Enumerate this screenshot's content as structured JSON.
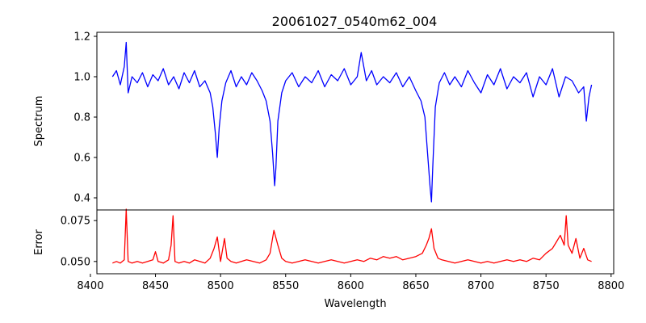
{
  "chart_data": [
    {
      "type": "line",
      "title": "20061027_0540m62_004",
      "xlabel": "",
      "ylabel": "Spectrum",
      "xlim": [
        8405,
        8802
      ],
      "ylim": [
        0.34,
        1.22
      ],
      "yticks": [
        "0.4",
        "0.6",
        "0.8",
        "1.0",
        "1.2"
      ],
      "grid": false,
      "color": "#0000ff",
      "series": [
        {
          "x": [
            8417,
            8420,
            8423,
            8426,
            8427.5,
            8429,
            8432,
            8436,
            8440,
            8444,
            8448,
            8452,
            8456,
            8460,
            8464,
            8468,
            8472,
            8476,
            8480,
            8484,
            8488,
            8492,
            8494,
            8496,
            8497.5,
            8499,
            8501,
            8504,
            8508,
            8512,
            8516,
            8520,
            8524,
            8528,
            8532,
            8535,
            8538,
            8540,
            8541.5,
            8542.5,
            8544,
            8547,
            8550,
            8555,
            8560,
            8565,
            8570,
            8575,
            8580,
            8585,
            8590,
            8595,
            8600,
            8605,
            8608,
            8612,
            8616,
            8620,
            8625,
            8630,
            8635,
            8640,
            8645,
            8650,
            8654,
            8657,
            8659,
            8661,
            8662,
            8663,
            8665,
            8668,
            8672,
            8676,
            8680,
            8685,
            8690,
            8695,
            8700,
            8705,
            8710,
            8715,
            8720,
            8725,
            8730,
            8735,
            8740,
            8745,
            8750,
            8755,
            8760,
            8765,
            8770,
            8775,
            8779,
            8781,
            8783,
            8785
          ],
          "y": [
            1.0,
            1.03,
            0.96,
            1.05,
            1.17,
            0.92,
            1.0,
            0.97,
            1.02,
            0.95,
            1.01,
            0.98,
            1.04,
            0.96,
            1.0,
            0.94,
            1.02,
            0.97,
            1.03,
            0.95,
            0.98,
            0.92,
            0.85,
            0.72,
            0.6,
            0.75,
            0.88,
            0.97,
            1.03,
            0.95,
            1.0,
            0.96,
            1.02,
            0.98,
            0.93,
            0.88,
            0.78,
            0.62,
            0.46,
            0.55,
            0.78,
            0.92,
            0.98,
            1.02,
            0.95,
            1.0,
            0.97,
            1.03,
            0.95,
            1.01,
            0.98,
            1.04,
            0.96,
            1.0,
            1.12,
            0.98,
            1.03,
            0.96,
            1.0,
            0.97,
            1.02,
            0.95,
            1.0,
            0.93,
            0.88,
            0.8,
            0.62,
            0.45,
            0.38,
            0.55,
            0.85,
            0.97,
            1.02,
            0.96,
            1.0,
            0.95,
            1.03,
            0.97,
            0.92,
            1.01,
            0.96,
            1.04,
            0.94,
            1.0,
            0.97,
            1.02,
            0.9,
            1.0,
            0.96,
            1.04,
            0.9,
            1.0,
            0.98,
            0.92,
            0.95,
            0.78,
            0.9,
            0.96
          ]
        }
      ]
    },
    {
      "type": "line",
      "title": "",
      "xlabel": "Wavelength",
      "ylabel": "Error",
      "xlim": [
        8405,
        8802
      ],
      "ylim": [
        0.0425,
        0.0815
      ],
      "xticks": [
        "8400",
        "8450",
        "8500",
        "8550",
        "8600",
        "8650",
        "8700",
        "8750",
        "8800"
      ],
      "yticks": [
        "0.050",
        "0.075"
      ],
      "grid": false,
      "color": "#ff0000",
      "series": [
        {
          "x": [
            8417,
            8420,
            8423,
            8426,
            8427.5,
            8429,
            8432,
            8436,
            8440,
            8444,
            8448,
            8450,
            8452,
            8456,
            8460,
            8462,
            8463.5,
            8465,
            8468,
            8472,
            8476,
            8480,
            8484,
            8488,
            8492,
            8495,
            8497.5,
            8500,
            8503,
            8505,
            8508,
            8512,
            8516,
            8520,
            8525,
            8530,
            8535,
            8538,
            8541,
            8544,
            8547,
            8550,
            8555,
            8560,
            8565,
            8570,
            8575,
            8580,
            8585,
            8590,
            8595,
            8600,
            8605,
            8610,
            8615,
            8620,
            8625,
            8630,
            8635,
            8640,
            8645,
            8650,
            8655,
            8658,
            8660,
            8662,
            8664,
            8667,
            8670,
            8675,
            8680,
            8685,
            8690,
            8695,
            8700,
            8705,
            8710,
            8715,
            8720,
            8725,
            8730,
            8735,
            8740,
            8745,
            8750,
            8755,
            8758,
            8761,
            8764,
            8765.5,
            8767,
            8770,
            8773,
            8776,
            8779,
            8782,
            8785
          ],
          "y": [
            0.049,
            0.05,
            0.049,
            0.051,
            0.082,
            0.05,
            0.049,
            0.05,
            0.049,
            0.05,
            0.051,
            0.056,
            0.05,
            0.049,
            0.051,
            0.06,
            0.078,
            0.05,
            0.049,
            0.05,
            0.049,
            0.051,
            0.05,
            0.049,
            0.052,
            0.058,
            0.065,
            0.05,
            0.064,
            0.052,
            0.05,
            0.049,
            0.05,
            0.051,
            0.05,
            0.049,
            0.051,
            0.055,
            0.069,
            0.06,
            0.052,
            0.05,
            0.049,
            0.05,
            0.051,
            0.05,
            0.049,
            0.05,
            0.051,
            0.05,
            0.049,
            0.05,
            0.051,
            0.05,
            0.052,
            0.051,
            0.053,
            0.052,
            0.053,
            0.051,
            0.052,
            0.053,
            0.055,
            0.06,
            0.064,
            0.07,
            0.058,
            0.052,
            0.051,
            0.05,
            0.049,
            0.05,
            0.051,
            0.05,
            0.049,
            0.05,
            0.049,
            0.05,
            0.051,
            0.05,
            0.051,
            0.05,
            0.052,
            0.051,
            0.055,
            0.058,
            0.062,
            0.066,
            0.06,
            0.078,
            0.06,
            0.055,
            0.064,
            0.052,
            0.058,
            0.051,
            0.05
          ]
        }
      ]
    }
  ]
}
